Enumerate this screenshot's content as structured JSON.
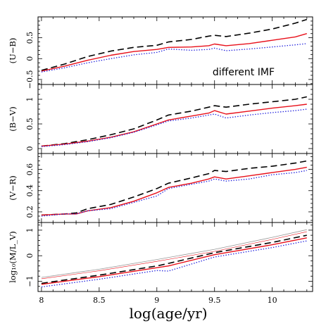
{
  "colors": {
    "black_dashed": "#000000",
    "red_solid": "#e8101a",
    "blue_dotted": "#1a1adc",
    "red_thin": "#e8101a",
    "gray_thin": "#999999"
  },
  "chart_data": {
    "type": "line",
    "xlabel": "log(age/yr)",
    "xlim": [
      7.97,
      10.35
    ],
    "xticks": [
      8,
      8.5,
      9,
      9.5,
      10
    ],
    "xtick_labels": [
      "8",
      "8.5",
      "9",
      "9.5",
      "10"
    ],
    "grid": false,
    "panels": [
      {
        "id": "ub",
        "ylabel": "(U−B)",
        "ylim": [
          -0.62,
          1.0
        ],
        "yticks": [
          -0.5,
          0,
          0.5
        ],
        "ytick_labels": [
          "−0.5",
          "0",
          "0.5"
        ],
        "annotation": "different IMF",
        "series": [
          {
            "style": "dashed",
            "color": "black",
            "x": [
              8.0,
              8.2,
              8.4,
              8.6,
              8.8,
              9.0,
              9.1,
              9.3,
              9.45,
              9.5,
              9.6,
              9.8,
              10.0,
              10.2,
              10.3
            ],
            "y": [
              -0.28,
              -0.13,
              0.05,
              0.18,
              0.27,
              0.32,
              0.4,
              0.46,
              0.54,
              0.56,
              0.53,
              0.61,
              0.71,
              0.85,
              0.94
            ]
          },
          {
            "style": "solid",
            "color": "red",
            "x": [
              8.0,
              8.2,
              8.4,
              8.6,
              8.8,
              9.0,
              9.1,
              9.3,
              9.45,
              9.5,
              9.6,
              9.8,
              10.0,
              10.2,
              10.3
            ],
            "y": [
              -0.3,
              -0.18,
              -0.04,
              0.08,
              0.17,
              0.22,
              0.27,
              0.28,
              0.31,
              0.35,
              0.31,
              0.36,
              0.44,
              0.52,
              0.6
            ]
          },
          {
            "style": "dotted",
            "color": "blue",
            "x": [
              8.0,
              8.2,
              8.4,
              8.6,
              8.8,
              9.0,
              9.1,
              9.3,
              9.45,
              9.5,
              9.6,
              9.8,
              10.0,
              10.2,
              10.3
            ],
            "y": [
              -0.32,
              -0.22,
              -0.1,
              0.0,
              0.09,
              0.15,
              0.23,
              0.2,
              0.22,
              0.25,
              0.19,
              0.23,
              0.28,
              0.33,
              0.36
            ]
          }
        ]
      },
      {
        "id": "bv",
        "ylabel": "(B−V)",
        "ylim": [
          -0.1,
          1.3
        ],
        "yticks": [
          0,
          0.5,
          1
        ],
        "ytick_labels": [
          "0",
          "0.5",
          "1"
        ],
        "series": [
          {
            "style": "dashed",
            "color": "black",
            "x": [
              8.0,
              8.2,
              8.4,
              8.6,
              8.8,
              9.0,
              9.1,
              9.3,
              9.45,
              9.5,
              9.6,
              9.8,
              10.0,
              10.2,
              10.3
            ],
            "y": [
              0.05,
              0.1,
              0.18,
              0.28,
              0.4,
              0.58,
              0.68,
              0.76,
              0.84,
              0.87,
              0.84,
              0.9,
              0.95,
              1.0,
              1.05
            ]
          },
          {
            "style": "solid",
            "color": "red",
            "x": [
              8.0,
              8.2,
              8.4,
              8.6,
              8.8,
              9.0,
              9.1,
              9.3,
              9.45,
              9.5,
              9.6,
              9.8,
              10.0,
              10.2,
              10.3
            ],
            "y": [
              0.05,
              0.09,
              0.15,
              0.23,
              0.34,
              0.5,
              0.58,
              0.66,
              0.72,
              0.77,
              0.7,
              0.76,
              0.82,
              0.87,
              0.9
            ]
          },
          {
            "style": "dotted",
            "color": "blue",
            "x": [
              8.0,
              8.2,
              8.4,
              8.6,
              8.8,
              9.0,
              9.1,
              9.3,
              9.45,
              9.5,
              9.6,
              9.8,
              10.0,
              10.2,
              10.3
            ],
            "y": [
              0.04,
              0.08,
              0.14,
              0.22,
              0.33,
              0.48,
              0.56,
              0.62,
              0.68,
              0.7,
              0.62,
              0.68,
              0.73,
              0.77,
              0.8
            ]
          }
        ]
      },
      {
        "id": "vr",
        "ylabel": "(V−R)",
        "ylim": [
          0.1,
          0.75
        ],
        "yticks": [
          0.2,
          0.4,
          0.6
        ],
        "ytick_labels": [
          "0.2",
          "0.4",
          "0.6"
        ],
        "series": [
          {
            "style": "dashed",
            "color": "black",
            "x": [
              8.0,
              8.2,
              8.3,
              8.4,
              8.6,
              8.8,
              9.0,
              9.1,
              9.3,
              9.45,
              9.5,
              9.6,
              9.8,
              10.0,
              10.2,
              10.3
            ],
            "y": [
              0.17,
              0.18,
              0.19,
              0.23,
              0.27,
              0.34,
              0.42,
              0.47,
              0.52,
              0.56,
              0.59,
              0.58,
              0.61,
              0.63,
              0.66,
              0.68
            ]
          },
          {
            "style": "solid",
            "color": "red",
            "x": [
              8.0,
              8.2,
              8.3,
              8.4,
              8.6,
              8.8,
              9.0,
              9.1,
              9.3,
              9.45,
              9.5,
              9.6,
              9.8,
              10.0,
              10.2,
              10.3
            ],
            "y": [
              0.17,
              0.18,
              0.18,
              0.21,
              0.24,
              0.3,
              0.38,
              0.43,
              0.47,
              0.51,
              0.53,
              0.51,
              0.54,
              0.57,
              0.6,
              0.62
            ]
          },
          {
            "style": "dotted",
            "color": "blue",
            "x": [
              8.0,
              8.2,
              8.3,
              8.4,
              8.6,
              8.8,
              9.0,
              9.1,
              9.3,
              9.45,
              9.5,
              9.6,
              9.8,
              10.0,
              10.2,
              10.3
            ],
            "y": [
              0.16,
              0.18,
              0.18,
              0.21,
              0.23,
              0.29,
              0.35,
              0.42,
              0.46,
              0.49,
              0.51,
              0.49,
              0.51,
              0.55,
              0.57,
              0.59
            ]
          }
        ]
      },
      {
        "id": "ml",
        "ylabel": "log₁₀(M/L_V)",
        "ylim": [
          -1.4,
          1.3
        ],
        "yticks": [
          -1,
          0,
          1
        ],
        "ytick_labels": [
          "−1",
          "0",
          "1"
        ],
        "series": [
          {
            "style": "thin",
            "color": "gray",
            "x": [
              8.0,
              8.5,
              9.0,
              9.5,
              10.0,
              10.3
            ],
            "y": [
              -0.85,
              -0.53,
              -0.15,
              0.25,
              0.72,
              1.02
            ]
          },
          {
            "style": "thin",
            "color": "red",
            "x": [
              8.0,
              8.5,
              9.0,
              9.5,
              10.0,
              10.3
            ],
            "y": [
              -0.9,
              -0.59,
              -0.22,
              0.17,
              0.64,
              0.94
            ]
          },
          {
            "style": "dashed",
            "color": "black",
            "x": [
              8.0,
              8.5,
              9.0,
              9.1,
              9.5,
              10.0,
              10.3
            ],
            "y": [
              -1.08,
              -0.76,
              -0.4,
              -0.3,
              0.12,
              0.52,
              0.8
            ]
          },
          {
            "style": "solid",
            "color": "red",
            "x": [
              8.0,
              8.5,
              9.0,
              9.1,
              9.5,
              10.0,
              10.3
            ],
            "y": [
              -1.12,
              -0.82,
              -0.47,
              -0.4,
              0.04,
              0.43,
              0.7
            ]
          },
          {
            "style": "dotted",
            "color": "blue",
            "x": [
              8.0,
              8.5,
              9.0,
              9.1,
              9.5,
              10.0,
              10.3
            ],
            "y": [
              -1.22,
              -0.92,
              -0.58,
              -0.6,
              -0.05,
              0.32,
              0.58
            ]
          }
        ]
      }
    ]
  }
}
